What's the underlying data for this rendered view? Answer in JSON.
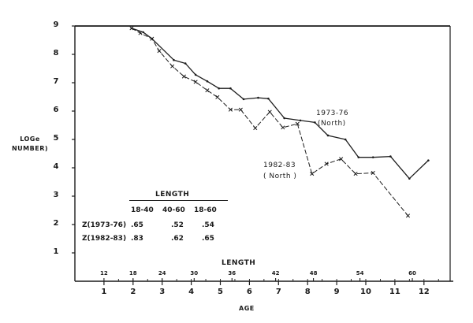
{
  "chart_data": {
    "type": "line",
    "title": "",
    "xlabel": "AGE",
    "ylabel": "LOGe NUMBER)",
    "secondary_xlabel": "LENGTH",
    "xlim": [
      0,
      13
    ],
    "ylim": [
      0,
      9
    ],
    "grid": false,
    "y_ticks": [
      "1",
      "2",
      "3",
      "4",
      "5",
      "6",
      "7",
      "8",
      "9"
    ],
    "x_ticks": [
      "1",
      "2",
      "3",
      "4",
      "5",
      "6",
      "7",
      "8",
      "9",
      "10",
      "11",
      "12"
    ],
    "length_ticks": [
      {
        "label": "12",
        "age": 1.0
      },
      {
        "label": "18",
        "age": 2.0
      },
      {
        "label": "24",
        "age": 3.0
      },
      {
        "label": "30",
        "age": 4.1
      },
      {
        "label": "36",
        "age": 5.4
      },
      {
        "label": "42",
        "age": 6.9
      },
      {
        "label": "48",
        "age": 8.2
      },
      {
        "label": "54",
        "age": 9.8
      },
      {
        "label": "60",
        "age": 11.6
      }
    ],
    "series": [
      {
        "name": "1973-76 (North)",
        "style": "solid",
        "points": [
          [
            1.95,
            8.92
          ],
          [
            2.35,
            8.78
          ],
          [
            2.65,
            8.55
          ],
          [
            3.4,
            7.8
          ],
          [
            3.8,
            7.68
          ],
          [
            4.15,
            7.28
          ],
          [
            4.55,
            7.05
          ],
          [
            4.95,
            6.8
          ],
          [
            5.35,
            6.8
          ],
          [
            5.8,
            6.42
          ],
          [
            6.3,
            6.47
          ],
          [
            6.65,
            6.44
          ],
          [
            7.2,
            5.75
          ],
          [
            7.75,
            5.67
          ],
          [
            8.25,
            5.6
          ],
          [
            8.7,
            5.14
          ],
          [
            9.3,
            5.0
          ],
          [
            9.75,
            4.37
          ],
          [
            10.25,
            4.37
          ],
          [
            10.85,
            4.4
          ],
          [
            11.5,
            3.62
          ],
          [
            12.15,
            4.26
          ]
        ]
      },
      {
        "name": "1982-83 (North)",
        "style": "dashed-x",
        "points": [
          [
            1.95,
            8.92
          ],
          [
            2.25,
            8.75
          ],
          [
            2.65,
            8.55
          ],
          [
            2.9,
            8.12
          ],
          [
            3.35,
            7.58
          ],
          [
            3.75,
            7.22
          ],
          [
            4.15,
            7.03
          ],
          [
            4.55,
            6.73
          ],
          [
            4.9,
            6.49
          ],
          [
            5.35,
            6.05
          ],
          [
            5.7,
            6.05
          ],
          [
            6.2,
            5.4
          ],
          [
            6.7,
            5.97
          ],
          [
            7.15,
            5.42
          ],
          [
            7.65,
            5.55
          ],
          [
            8.15,
            3.79
          ],
          [
            8.65,
            4.14
          ],
          [
            9.15,
            4.31
          ],
          [
            9.65,
            3.79
          ],
          [
            10.25,
            3.82
          ],
          [
            11.45,
            2.31
          ]
        ]
      }
    ],
    "annotations": [
      {
        "text": "1973-76",
        "line2": "(North)"
      },
      {
        "text": "1982-83",
        "line2": "( North )"
      }
    ],
    "inset_table": {
      "header": "LENGTH",
      "columns": [
        "18-40",
        "40-60",
        "18-60"
      ],
      "rows": [
        {
          "label": "Z(1973-76)",
          "values": [
            ".65",
            ".52",
            ".54"
          ]
        },
        {
          "label": "Z(1982-83)",
          "values": [
            ".83",
            ".62",
            ".65"
          ]
        }
      ]
    }
  },
  "labels": {
    "ylabel_line1": "LOGe",
    "ylabel_line2": "NUMBER)",
    "xlabel": "AGE",
    "length_axis": "LENGTH",
    "series1_name": "1973-76",
    "series1_region": "(North)",
    "series2_name": "1982-83",
    "series2_region": "( North )"
  }
}
